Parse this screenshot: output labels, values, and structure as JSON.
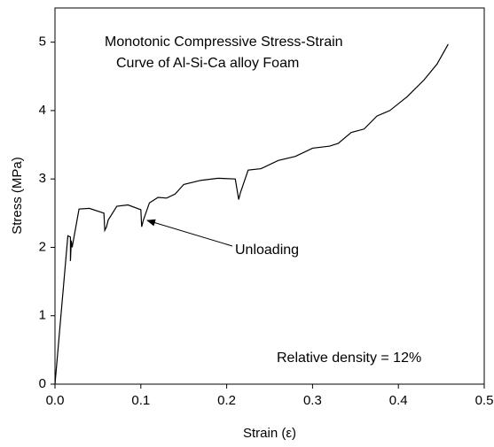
{
  "chart_data": {
    "type": "line",
    "title": [
      "Monotonic Compressive Stress-Strain",
      "Curve of Al-Si-Ca alloy Foam"
    ],
    "x_label": "Strain (ε)",
    "y_label": "Stress (MPa)",
    "annotations": [
      "Unloading",
      "Relative density = 12%"
    ],
    "color": "#000000",
    "x": [
      0,
      0.015,
      0.018,
      0.018,
      0.019,
      0.02,
      0.028,
      0.04,
      0.057,
      0.058,
      0.06,
      0.062,
      0.072,
      0.085,
      0.1,
      0.101,
      0.103,
      0.11,
      0.12,
      0.13,
      0.14,
      0.15,
      0.17,
      0.19,
      0.21,
      0.214,
      0.216,
      0.225,
      0.24,
      0.26,
      0.28,
      0.3,
      0.32,
      0.33,
      0.345,
      0.36,
      0.375,
      0.39,
      0.41,
      0.43,
      0.445,
      0.458
    ],
    "values": [
      0,
      2.17,
      2.15,
      1.8,
      2.1,
      2.0,
      2.56,
      2.57,
      2.5,
      2.25,
      2.3,
      2.4,
      2.6,
      2.62,
      2.55,
      2.3,
      2.4,
      2.65,
      2.73,
      2.72,
      2.78,
      2.92,
      2.98,
      3.01,
      3.0,
      2.7,
      2.8,
      3.13,
      3.15,
      3.27,
      3.33,
      3.45,
      3.48,
      3.52,
      3.68,
      3.73,
      3.92,
      4.0,
      4.2,
      4.45,
      4.68,
      4.97
    ],
    "xlim": [
      0,
      0.5
    ],
    "xticks": [
      {
        "value": 0,
        "label": "0.0"
      },
      0.1,
      0.2,
      0.3,
      0.4,
      0.5
    ],
    "ylim": [
      0,
      5.5
    ],
    "yticks": [
      0,
      1,
      2,
      3,
      4,
      5
    ]
  }
}
